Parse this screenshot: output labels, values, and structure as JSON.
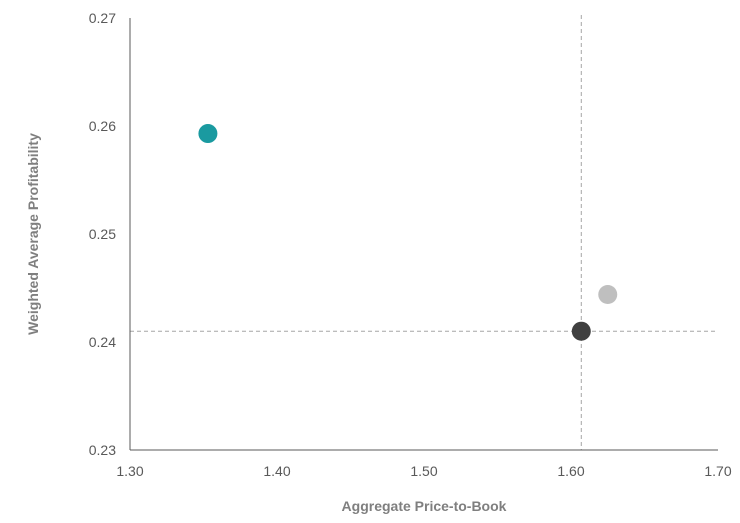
{
  "chart_data": {
    "type": "scatter",
    "title": "",
    "xlabel": "Aggregate Price-to-Book",
    "ylabel": "Weighted Average Profitability",
    "xlim": [
      1.3,
      1.7
    ],
    "ylim": [
      0.23,
      0.27
    ],
    "x_ticks": [
      "1.30",
      "1.40",
      "1.50",
      "1.60",
      "1.70"
    ],
    "y_ticks": [
      "0.27",
      "0.26",
      "0.25",
      "0.24",
      "0.23"
    ],
    "grid": false,
    "reference_lines": {
      "x": 1.607,
      "y": 0.241
    },
    "points": [
      {
        "x": 1.353,
        "y": 0.2593,
        "color": "#1a9aa0"
      },
      {
        "x": 1.625,
        "y": 0.2444,
        "color": "#bfbfbf"
      },
      {
        "x": 1.607,
        "y": 0.241,
        "color": "#404040"
      }
    ]
  }
}
